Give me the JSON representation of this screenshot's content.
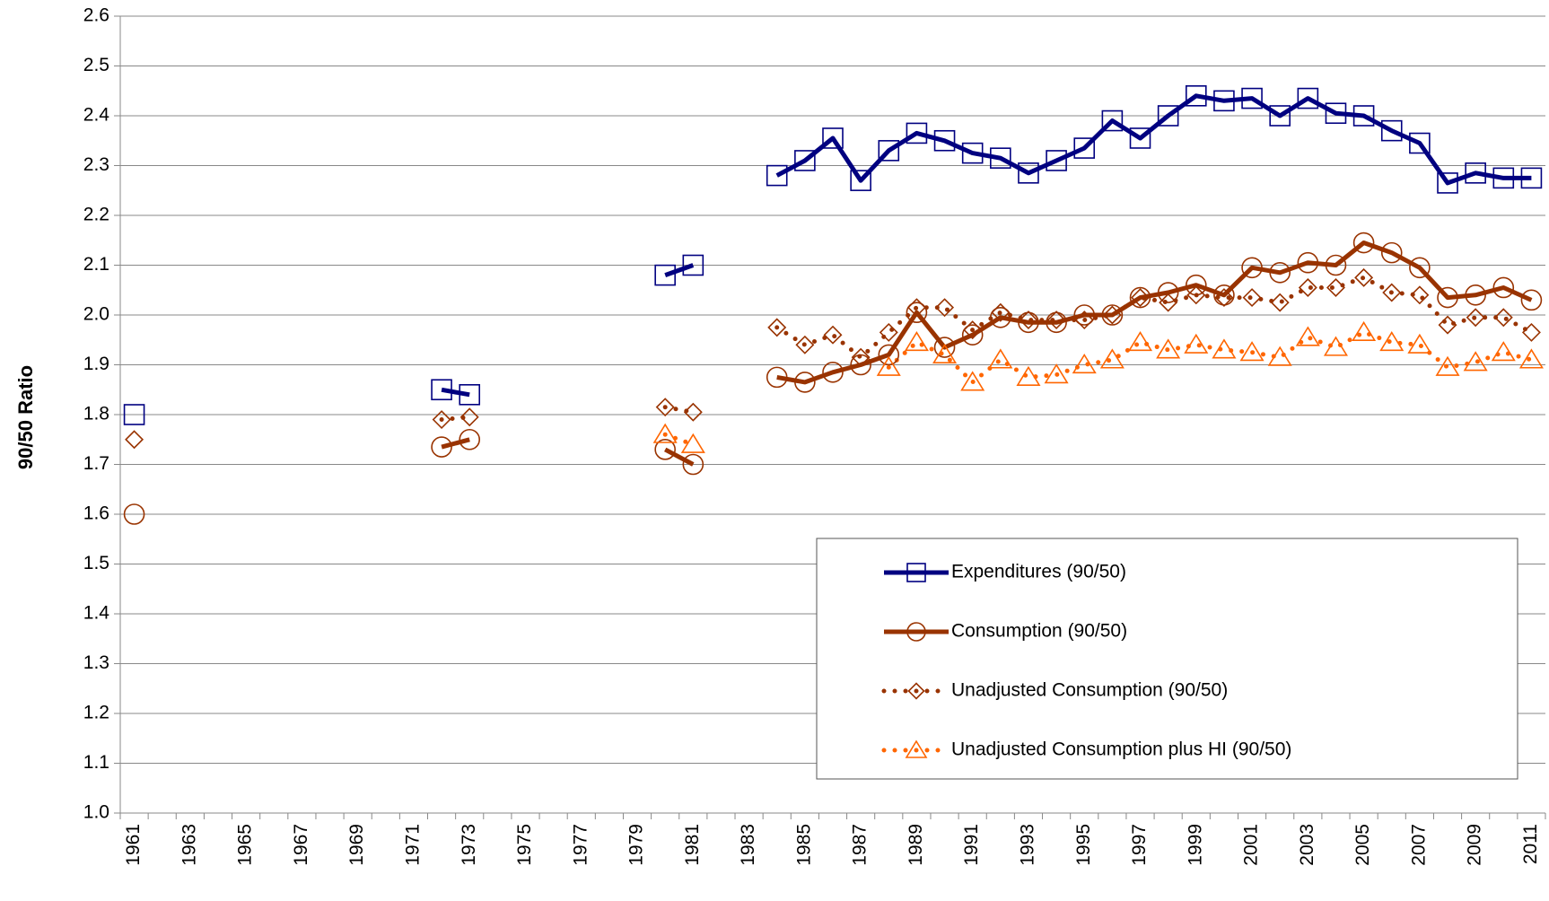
{
  "chart_data": {
    "type": "line",
    "y_label": "90/50 Ratio",
    "categories": [
      "1961",
      null,
      "1963",
      null,
      "1965",
      null,
      "1967",
      null,
      "1969",
      null,
      "1971",
      null,
      "1973",
      null,
      "1975",
      null,
      "1977",
      null,
      "1979",
      null,
      "1981",
      null,
      "1983",
      null,
      "1985",
      null,
      "1987",
      null,
      "1989",
      null,
      "1991",
      null,
      "1993",
      null,
      "1995",
      null,
      "1997",
      null,
      "1999",
      null,
      "2001",
      null,
      "2003",
      null,
      "2005",
      null,
      "2007",
      null,
      "2009",
      null,
      "2011"
    ],
    "ylim": [
      1.0,
      2.6
    ],
    "yticks": [
      {
        "value": 1,
        "label": "1.0"
      },
      1.1,
      1.2,
      1.3,
      1.4,
      1.5,
      1.6,
      1.7,
      1.8,
      1.9,
      {
        "value": 2,
        "label": "2.0"
      },
      2.1,
      2.2,
      2.3,
      2.4,
      2.5,
      2.6
    ],
    "grid": true,
    "legend": "lower-right",
    "series": [
      {
        "name": "Expenditures (90/50)",
        "color": "#000080",
        "line": "solid",
        "marker": "square",
        "values": [
          1.8,
          null,
          null,
          null,
          null,
          null,
          null,
          null,
          null,
          null,
          null,
          1.85,
          1.84,
          null,
          null,
          null,
          null,
          null,
          null,
          2.08,
          2.1,
          null,
          null,
          2.28,
          2.31,
          2.355,
          2.27,
          2.33,
          2.365,
          2.35,
          2.325,
          2.315,
          2.285,
          2.31,
          2.335,
          2.39,
          2.355,
          2.4,
          2.44,
          2.43,
          2.435,
          2.4,
          2.435,
          2.405,
          2.4,
          2.37,
          2.345,
          2.265,
          2.285,
          2.275,
          2.275
        ]
      },
      {
        "name": "Consumption (90/50)",
        "color": "#993300",
        "line": "solid",
        "marker": "circle",
        "values": [
          1.6,
          null,
          null,
          null,
          null,
          null,
          null,
          null,
          null,
          null,
          null,
          1.735,
          1.75,
          null,
          null,
          null,
          null,
          null,
          null,
          1.73,
          1.7,
          null,
          null,
          1.875,
          1.865,
          1.885,
          1.9,
          1.92,
          2.005,
          1.935,
          1.96,
          1.995,
          1.985,
          1.985,
          2.0,
          2.0,
          2.035,
          2.045,
          2.06,
          2.04,
          2.095,
          2.085,
          2.105,
          2.1,
          2.145,
          2.125,
          2.095,
          2.035,
          2.04,
          2.055,
          2.03
        ]
      },
      {
        "name": "Unadjusted Consumption (90/50)",
        "color": "#993300",
        "line": "dotted",
        "marker": "diamond",
        "values": [
          1.75,
          null,
          null,
          null,
          null,
          null,
          null,
          null,
          null,
          null,
          null,
          1.79,
          1.795,
          null,
          null,
          null,
          null,
          null,
          null,
          1.815,
          1.805,
          null,
          null,
          1.975,
          1.94,
          1.96,
          1.915,
          1.965,
          2.015,
          2.015,
          1.97,
          2.005,
          1.99,
          1.99,
          1.99,
          2.0,
          2.035,
          2.025,
          2.04,
          2.035,
          2.035,
          2.025,
          2.055,
          2.055,
          2.075,
          2.045,
          2.04,
          1.98,
          1.995,
          1.995,
          1.965
        ]
      },
      {
        "name": "Unadjusted Consumption plus HI (90/50)",
        "color": "#FF6600",
        "line": "dotted",
        "marker": "triangle",
        "values": [
          null,
          null,
          null,
          null,
          null,
          null,
          null,
          null,
          null,
          null,
          null,
          null,
          null,
          null,
          null,
          null,
          null,
          null,
          null,
          1.76,
          1.74,
          null,
          null,
          null,
          null,
          null,
          null,
          1.895,
          1.945,
          1.92,
          1.865,
          1.91,
          1.875,
          1.88,
          1.9,
          1.91,
          1.945,
          1.93,
          1.94,
          1.93,
          1.925,
          1.915,
          1.955,
          1.935,
          1.965,
          1.945,
          1.94,
          1.895,
          1.905,
          1.925,
          1.91
        ]
      }
    ]
  }
}
